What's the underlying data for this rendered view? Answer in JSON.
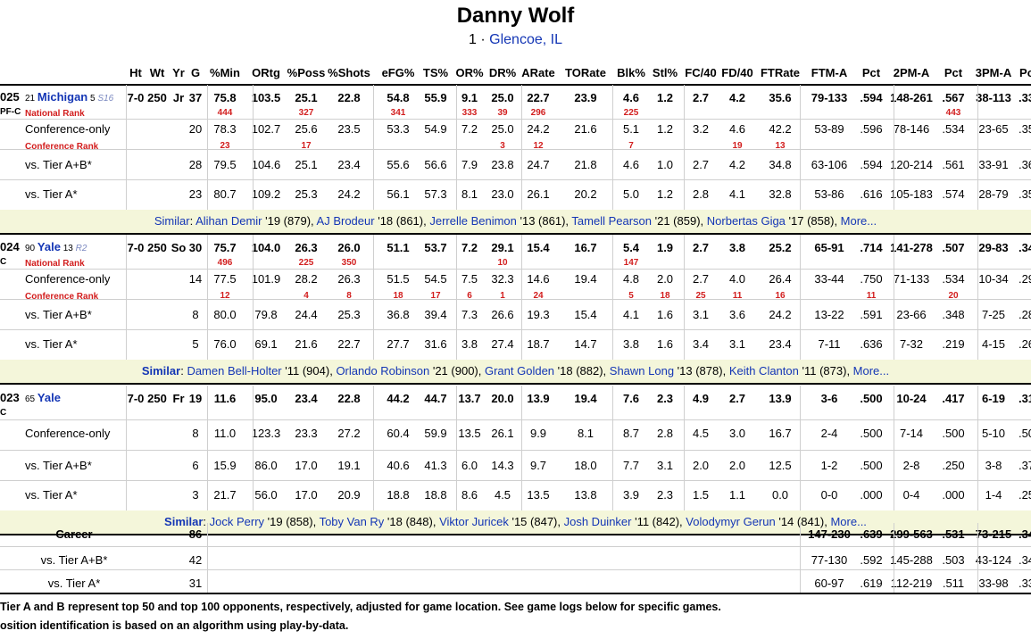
{
  "player": {
    "name": "Danny Wolf",
    "number": "1",
    "hometown": "Glencoe, IL"
  },
  "columns": [
    "Ht",
    "Wt",
    "Yr",
    "G",
    "%Min",
    "ORtg",
    "%Poss",
    "%Shots",
    "eFG%",
    "TS%",
    "OR%",
    "DR%",
    "ARate",
    "TORate",
    "Blk%",
    "Stl%",
    "FC/40",
    "FD/40",
    "FTRate",
    "FTM-A",
    "Pct",
    "2PM-A",
    "Pct",
    "3PM-A",
    "Pc"
  ],
  "labels": {
    "national_rank": "National Rank",
    "conference_rank": "Conference Rank",
    "conf_only": "Conference-only",
    "tier_ab": "vs. Tier A+B*",
    "tier_a": "vs. Tier A*",
    "similar": "Similar",
    "more": "More..."
  },
  "seasons": [
    {
      "year": "025",
      "pos": "PF-C",
      "team_rank": "21",
      "team": "Michigan",
      "seed_num": "5",
      "seed": "S16",
      "main": [
        "7-0",
        "250",
        "Jr",
        "37",
        "75.8",
        "103.5",
        "25.1",
        "22.8",
        "54.8",
        "55.9",
        "9.1",
        "25.0",
        "22.7",
        "23.9",
        "4.6",
        "1.2",
        "2.7",
        "4.2",
        "35.6",
        "79-133",
        ".594",
        "148-261",
        ".567",
        "38-113",
        ".33"
      ],
      "nat_rank": [
        "",
        "",
        "",
        "",
        "444",
        "",
        "327",
        "",
        "341",
        "",
        "333",
        "39",
        "296",
        "",
        "225",
        "",
        "",
        "",
        "",
        "",
        "",
        "",
        "443",
        "",
        ""
      ],
      "conf": [
        "",
        "",
        "",
        "20",
        "78.3",
        "102.7",
        "25.6",
        "23.5",
        "53.3",
        "54.9",
        "7.2",
        "25.0",
        "24.2",
        "21.6",
        "5.1",
        "1.2",
        "3.2",
        "4.6",
        "42.2",
        "53-89",
        ".596",
        "78-146",
        ".534",
        "23-65",
        ".35"
      ],
      "conf_rank": [
        "",
        "",
        "",
        "",
        "23",
        "",
        "17",
        "",
        "",
        "",
        "",
        "3",
        "12",
        "",
        "7",
        "",
        "",
        "19",
        "13",
        "",
        "",
        "",
        "",
        "",
        ""
      ],
      "tab": [
        "",
        "",
        "",
        "28",
        "79.5",
        "104.6",
        "25.1",
        "23.4",
        "55.6",
        "56.6",
        "7.9",
        "23.8",
        "24.7",
        "21.8",
        "4.6",
        "1.0",
        "2.7",
        "4.2",
        "34.8",
        "63-106",
        ".594",
        "120-214",
        ".561",
        "33-91",
        ".36"
      ],
      "ta": [
        "",
        "",
        "",
        "23",
        "80.7",
        "109.2",
        "25.3",
        "24.2",
        "56.1",
        "57.3",
        "8.1",
        "23.0",
        "26.1",
        "20.2",
        "5.0",
        "1.2",
        "2.8",
        "4.1",
        "32.8",
        "53-86",
        ".616",
        "105-183",
        ".574",
        "28-79",
        ".35"
      ],
      "similar": [
        {
          "name": "Alihan Demir",
          "detail": " '19 (879)"
        },
        {
          "name": "AJ Brodeur",
          "detail": " '18 (861)"
        },
        {
          "name": "Jerrelle Benimon",
          "detail": " '13 (861)"
        },
        {
          "name": "Tamell Pearson",
          "detail": " '21 (859)"
        },
        {
          "name": "Norbertas Giga",
          "detail": " '17 (858)"
        }
      ]
    },
    {
      "year": "024",
      "pos": "C",
      "team_rank": "90",
      "team": "Yale",
      "seed_num": "13",
      "seed": "R2",
      "main": [
        "7-0",
        "250",
        "So",
        "30",
        "75.7",
        "104.0",
        "26.3",
        "26.0",
        "51.1",
        "53.7",
        "7.2",
        "29.1",
        "15.4",
        "16.7",
        "5.4",
        "1.9",
        "2.7",
        "3.8",
        "25.2",
        "65-91",
        ".714",
        "141-278",
        ".507",
        "29-83",
        ".34"
      ],
      "nat_rank": [
        "",
        "",
        "",
        "",
        "496",
        "",
        "225",
        "350",
        "",
        "",
        "",
        "10",
        "",
        "",
        "147",
        "",
        "",
        "",
        "",
        "",
        "",
        "",
        "",
        "",
        ""
      ],
      "conf": [
        "",
        "",
        "",
        "14",
        "77.5",
        "101.9",
        "28.2",
        "26.3",
        "51.5",
        "54.5",
        "7.5",
        "32.3",
        "14.6",
        "19.4",
        "4.8",
        "2.0",
        "2.7",
        "4.0",
        "26.4",
        "33-44",
        ".750",
        "71-133",
        ".534",
        "10-34",
        ".29"
      ],
      "conf_rank": [
        "",
        "",
        "",
        "",
        "12",
        "",
        "4",
        "8",
        "18",
        "17",
        "6",
        "1",
        "24",
        "",
        "5",
        "18",
        "25",
        "11",
        "16",
        "",
        "11",
        "",
        "20",
        "",
        ""
      ],
      "tab": [
        "",
        "",
        "",
        "8",
        "80.0",
        "79.8",
        "24.4",
        "25.3",
        "36.8",
        "39.4",
        "7.3",
        "26.6",
        "19.3",
        "15.4",
        "4.1",
        "1.6",
        "3.1",
        "3.6",
        "24.2",
        "13-22",
        ".591",
        "23-66",
        ".348",
        "7-25",
        ".28"
      ],
      "ta": [
        "",
        "",
        "",
        "5",
        "76.0",
        "69.1",
        "21.6",
        "22.7",
        "27.7",
        "31.6",
        "3.8",
        "27.4",
        "18.7",
        "14.7",
        "3.8",
        "1.6",
        "3.4",
        "3.1",
        "23.4",
        "7-11",
        ".636",
        "7-32",
        ".219",
        "4-15",
        ".26"
      ],
      "similar": [
        {
          "name": "Damen Bell-Holter",
          "detail": " '11 (904)"
        },
        {
          "name": "Orlando Robinson",
          "detail": " '21 (900)"
        },
        {
          "name": "Grant Golden",
          "detail": " '18 (882)"
        },
        {
          "name": "Shawn Long",
          "detail": " '13 (878)"
        },
        {
          "name": "Keith Clanton",
          "detail": " '11 (873)"
        }
      ]
    },
    {
      "year": "023",
      "pos": "C",
      "team_rank": "65",
      "team": "Yale",
      "main": [
        "7-0",
        "250",
        "Fr",
        "19",
        "11.6",
        "95.0",
        "23.4",
        "22.8",
        "44.2",
        "44.7",
        "13.7",
        "20.0",
        "13.9",
        "19.4",
        "7.6",
        "2.3",
        "4.9",
        "2.7",
        "13.9",
        "3-6",
        ".500",
        "10-24",
        ".417",
        "6-19",
        ".31"
      ],
      "conf": [
        "",
        "",
        "",
        "8",
        "11.0",
        "123.3",
        "23.3",
        "27.2",
        "60.4",
        "59.9",
        "13.5",
        "26.1",
        "9.9",
        "8.1",
        "8.7",
        "2.8",
        "4.5",
        "3.0",
        "16.7",
        "2-4",
        ".500",
        "7-14",
        ".500",
        "5-10",
        ".50"
      ],
      "tab": [
        "",
        "",
        "",
        "6",
        "15.9",
        "86.0",
        "17.0",
        "19.1",
        "40.6",
        "41.3",
        "6.0",
        "14.3",
        "9.7",
        "18.0",
        "7.7",
        "3.1",
        "2.0",
        "2.0",
        "12.5",
        "1-2",
        ".500",
        "2-8",
        ".250",
        "3-8",
        ".37"
      ],
      "ta": [
        "",
        "",
        "",
        "3",
        "21.7",
        "56.0",
        "17.0",
        "20.9",
        "18.8",
        "18.8",
        "8.6",
        "4.5",
        "13.5",
        "13.8",
        "3.9",
        "2.3",
        "1.5",
        "1.1",
        "0.0",
        "0-0",
        ".000",
        "0-4",
        ".000",
        "1-4",
        ".25"
      ],
      "similar": [
        {
          "name": "Jock Perry",
          "detail": " '19 (858)"
        },
        {
          "name": "Toby Van Ry",
          "detail": " '18 (848)"
        },
        {
          "name": "Viktor Juricek",
          "detail": " '15 (847)"
        },
        {
          "name": "Josh Duinker",
          "detail": " '11 (842)"
        },
        {
          "name": "Volodymyr Gerun",
          "detail": " '14 (841)"
        }
      ]
    }
  ],
  "career": [
    {
      "label": "Career",
      "g": "86",
      "ftm": "147-230",
      "ftp": ".639",
      "twom": "299-563",
      "twop": ".531",
      "threem": "73-215",
      "threep": ".34"
    },
    {
      "label": "vs. Tier A+B*",
      "g": "42",
      "ftm": "77-130",
      "ftp": ".592",
      "twom": "145-288",
      "twop": ".503",
      "threem": "43-124",
      "threep": ".34"
    },
    {
      "label": "vs. Tier A*",
      "g": "31",
      "ftm": "60-97",
      "ftp": ".619",
      "twom": "112-219",
      "twop": ".511",
      "threem": "33-98",
      "threep": ".33"
    }
  ],
  "footnotes": [
    "Tier A and B represent top 50 and top 100 opponents, respectively, adjusted for game location. See game logs below for specific games.",
    "osition identification is based on an algorithm using play-by-data."
  ]
}
